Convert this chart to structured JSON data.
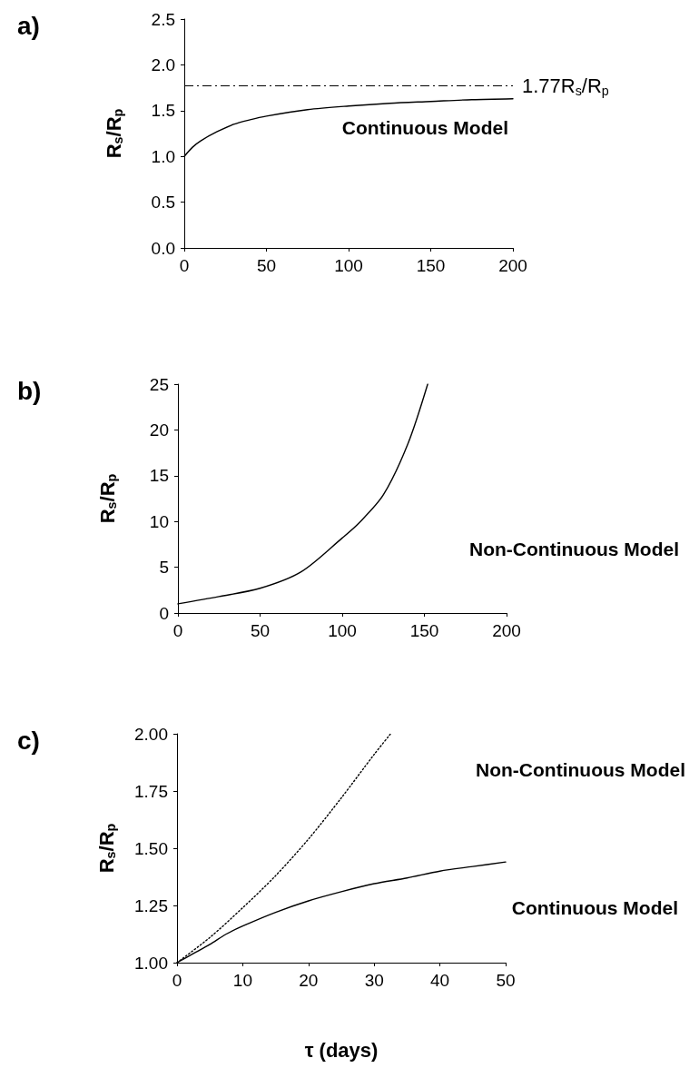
{
  "chart_data": [
    {
      "type": "line",
      "title": "a)",
      "ylabel": "R$_{s}$/R$_{p}$",
      "xlim": [
        0,
        200
      ],
      "xticks": [
        0,
        50,
        100,
        150,
        200
      ],
      "ylim": [
        0,
        2.5
      ],
      "yticks": [
        {
          "value": 0,
          "label": "0.0"
        },
        {
          "value": 0.5,
          "label": "0.5"
        },
        {
          "value": 1,
          "label": "1.0"
        },
        {
          "value": 1.5,
          "label": "1.5"
        },
        {
          "value": 2,
          "label": "2.0"
        },
        {
          "value": 2.5,
          "label": "2.5"
        }
      ],
      "grid": false,
      "marker": "none",
      "series": [
        {
          "name": "Continuous Model",
          "color": "#000000",
          "line_style": "solid",
          "x": [
            0,
            5,
            10,
            20,
            30,
            40,
            50,
            75,
            100,
            125,
            150,
            175,
            200
          ],
          "values": [
            1.0,
            1.1,
            1.17,
            1.27,
            1.35,
            1.4,
            1.44,
            1.51,
            1.55,
            1.58,
            1.6,
            1.62,
            1.63
          ]
        }
      ],
      "ref_lines": [
        {
          "axis": "y",
          "value": 1.77,
          "label": "1.77R$_{s}$/R$_{p}$",
          "color": "#000000",
          "line_style": "dashed"
        }
      ]
    },
    {
      "type": "line",
      "title": "b)",
      "ylabel": "R$_{s}$/R$_{p}$",
      "xlim": [
        0,
        200
      ],
      "xticks": [
        0,
        50,
        100,
        150,
        200
      ],
      "ylim": [
        0,
        25
      ],
      "yticks": [
        0,
        5,
        10,
        15,
        20,
        25
      ],
      "grid": false,
      "marker": "none",
      "series": [
        {
          "name": "Non-Continuous Model",
          "color": "#000000",
          "line_style": "solid",
          "x": [
            0,
            25,
            50,
            75,
            100,
            110,
            125,
            140,
            152
          ],
          "values": [
            1.0,
            1.8,
            2.7,
            4.5,
            8.2,
            9.8,
            12.9,
            18.5,
            25
          ]
        }
      ]
    },
    {
      "type": "line",
      "title": "c)",
      "ylabel": "R$_{s}$/R$_{p}$",
      "xlabel": "τ (days)",
      "xlim": [
        0,
        50
      ],
      "xticks": [
        0,
        10,
        20,
        30,
        40,
        50
      ],
      "ylim": [
        1,
        2
      ],
      "yticks": [
        {
          "value": 1,
          "label": "1.00"
        },
        {
          "value": 1.25,
          "label": "1.25"
        },
        {
          "value": 1.5,
          "label": "1.50"
        },
        {
          "value": 1.75,
          "label": "1.75"
        },
        {
          "value": 2,
          "label": "2.00"
        }
      ],
      "grid": false,
      "marker": "none",
      "series": [
        {
          "name": "Non-Continuous Model",
          "color": "#000000",
          "line_style": "dotted",
          "x": [
            0,
            5,
            10,
            15,
            20,
            25,
            30,
            32.5
          ],
          "values": [
            1.0,
            1.11,
            1.24,
            1.38,
            1.54,
            1.72,
            1.91,
            2.0
          ]
        },
        {
          "name": "Continuous Model",
          "color": "#000000",
          "line_style": "solid",
          "x": [
            0,
            2.5,
            5,
            7.5,
            10,
            15,
            20,
            25,
            30,
            35,
            40,
            45,
            50
          ],
          "values": [
            1.0,
            1.04,
            1.08,
            1.125,
            1.16,
            1.22,
            1.27,
            1.31,
            1.345,
            1.37,
            1.4,
            1.42,
            1.44
          ]
        }
      ]
    }
  ]
}
